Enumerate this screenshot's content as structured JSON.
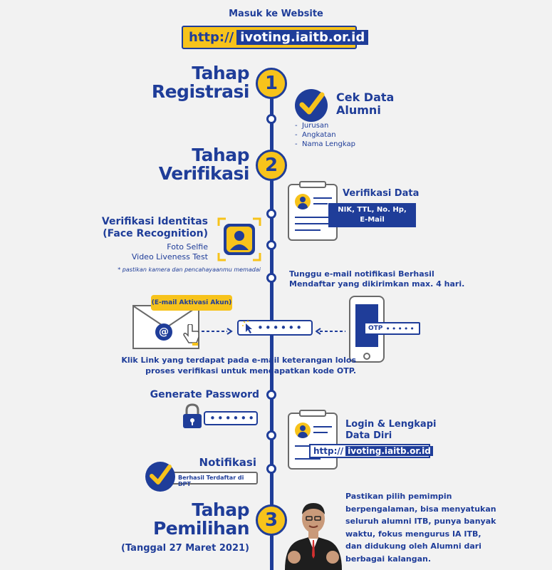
{
  "header": {
    "intro": "Masuk ke Website",
    "url_prefix": "http://",
    "url_domain": "ivoting.iaitb.or.id"
  },
  "step1": {
    "number": "1",
    "title_line1": "Tahap",
    "title_line2": "Registrasi",
    "check_title_line1": "Cek Data",
    "check_title_line2": "Alumni",
    "items": [
      "Jurusan",
      "Angkatan",
      "Nama Lengkap"
    ]
  },
  "step2": {
    "number": "2",
    "title_line1": "Tahap",
    "title_line2": "Verifikasi",
    "verif_data_title": "Verifikasi Data",
    "verif_data_line1": "NIK, TTL, No. Hp,",
    "verif_data_line2": "E-Mail",
    "identity_title_line1": "Verifikasi Identitas",
    "identity_title_line2": "(Face Recognition)",
    "identity_line1": "Foto Selfie",
    "identity_line2": "Video Liveness Test",
    "identity_note": "* pastikan kamera dan pencahayaanmu memadai",
    "email_wait_line1": "Tunggu e-mail notifikasi Berhasil",
    "email_wait_line2": "Mendaftar yang dikirimkan max. 4 hari.",
    "email_badge": "(E-mail Aktivasi Akun)",
    "email_symbol": "@",
    "otp_label": "OTP",
    "mask_dots": "••••••",
    "otp_dots": "•••••",
    "link_line1": "Klik Link yang terdapat pada e-mail keterangan lolos",
    "link_line2": "proses verifikasi untuk mendapatkan kode OTP."
  },
  "password": {
    "title": "Generate Password",
    "dots": "••••••"
  },
  "login": {
    "title_line1": "Login & Lengkapi",
    "title_line2": "Data Diri",
    "url_prefix": "http://",
    "url_domain": "ivoting.iaitb.or.id"
  },
  "notif": {
    "title": "Notifikasi",
    "badge": "Berhasil Terdaftar di DPT"
  },
  "step3": {
    "number": "3",
    "title_line1": "Tahap",
    "title_line2": "Pemilihan",
    "date": "(Tanggal 27 Maret 2021)",
    "message_lines": [
      "Pastikan pilih pemimpin",
      "berpengalaman, bisa menyatukan",
      "seluruh alumni ITB, punya banyak",
      "waktu, fokus mengurus IA ITB,",
      "dan didukung oleh Alumni dari",
      "berbagai kalangan."
    ]
  },
  "colors": {
    "primary": "#1f3d99",
    "accent": "#f7c31b",
    "background": "#f2f2f2"
  }
}
